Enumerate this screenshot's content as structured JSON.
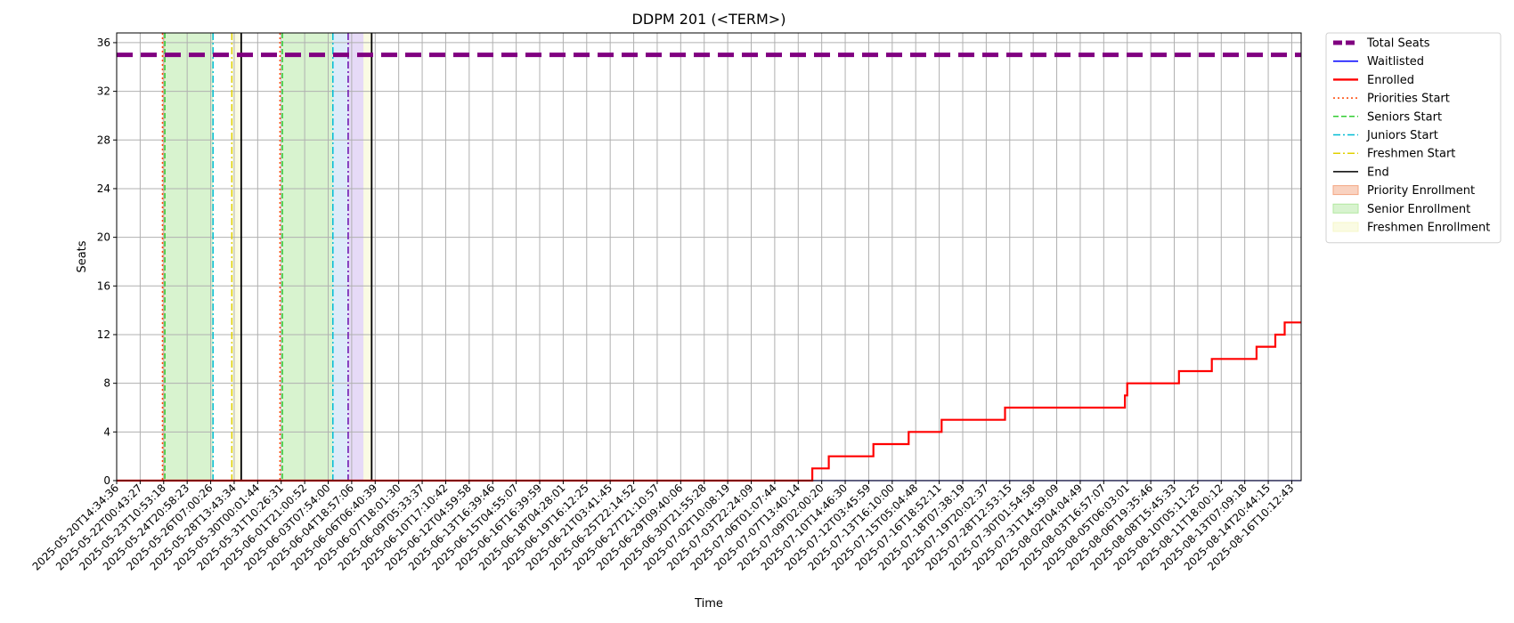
{
  "chart_data": {
    "type": "line",
    "title": "DDPM 201 (<TERM>)",
    "xlabel": "Time",
    "ylabel": "Seats",
    "ylim": [
      0,
      36.8
    ],
    "y_ticks": [
      0,
      4,
      8,
      12,
      16,
      20,
      24,
      28,
      32,
      36
    ],
    "grid": true,
    "legend_placement": "outside-top-right",
    "x_ticks": [
      "2025-05-20T14:34:36",
      "2025-05-22T00:43:27",
      "2025-05-23T10:53:18",
      "2025-05-24T20:58:23",
      "2025-05-26T07:00:26",
      "2025-05-28T13:43:34",
      "2025-05-30T00:01:44",
      "2025-05-31T10:26:31",
      "2025-06-01T21:00:52",
      "2025-06-03T07:54:00",
      "2025-06-04T18:57:06",
      "2025-06-06T06:40:39",
      "2025-06-07T18:01:30",
      "2025-06-09T05:33:37",
      "2025-06-10T17:10:42",
      "2025-06-12T04:59:58",
      "2025-06-13T16:39:46",
      "2025-06-15T04:55:07",
      "2025-06-16T16:39:59",
      "2025-06-18T04:28:01",
      "2025-06-19T16:12:25",
      "2025-06-21T03:41:45",
      "2025-06-25T22:14:52",
      "2025-06-27T21:10:57",
      "2025-06-29T09:40:06",
      "2025-06-30T21:55:28",
      "2025-07-02T10:08:19",
      "2025-07-03T22:24:09",
      "2025-07-06T01:07:44",
      "2025-07-07T13:40:14",
      "2025-07-09T02:00:20",
      "2025-07-10T14:46:30",
      "2025-07-12T03:45:59",
      "2025-07-13T16:10:00",
      "2025-07-15T05:04:48",
      "2025-07-16T18:52:11",
      "2025-07-18T07:38:19",
      "2025-07-19T20:02:37",
      "2025-07-28T12:53:15",
      "2025-07-30T01:54:58",
      "2025-07-31T14:59:09",
      "2025-08-02T04:04:49",
      "2025-08-03T16:57:07",
      "2025-08-05T06:03:01",
      "2025-08-06T19:35:46",
      "2025-08-08T15:45:33",
      "2025-08-10T05:11:25",
      "2025-08-11T18:00:12",
      "2025-08-13T07:09:18",
      "2025-08-14T20:44:15",
      "2025-08-16T10:12:43"
    ],
    "series": [
      {
        "name": "Total Seats",
        "color": "#800080",
        "style": "dashed-thick",
        "y_const": 35
      },
      {
        "name": "Waitlisted",
        "color": "#0000ff",
        "style": "solid-thin",
        "y_const": 0
      },
      {
        "name": "Enrolled",
        "color": "#ff0000",
        "style": "step",
        "points": [
          [
            0,
            0
          ],
          [
            29.6,
            0
          ],
          [
            29.6,
            1
          ],
          [
            30.3,
            1
          ],
          [
            30.3,
            2
          ],
          [
            32.2,
            2
          ],
          [
            32.2,
            3
          ],
          [
            33.7,
            3
          ],
          [
            33.7,
            4
          ],
          [
            35.1,
            4
          ],
          [
            35.1,
            5
          ],
          [
            37.8,
            5
          ],
          [
            37.8,
            6
          ],
          [
            42.9,
            6
          ],
          [
            42.9,
            7
          ],
          [
            43.0,
            7
          ],
          [
            43.0,
            8
          ],
          [
            45.2,
            8
          ],
          [
            45.2,
            9
          ],
          [
            46.6,
            9
          ],
          [
            46.6,
            10
          ],
          [
            48.5,
            10
          ],
          [
            48.5,
            11
          ],
          [
            49.3,
            11
          ],
          [
            49.3,
            12
          ],
          [
            49.7,
            12
          ],
          [
            49.7,
            13
          ],
          [
            50.4,
            13
          ]
        ]
      }
    ],
    "markers": [
      {
        "name": "Priorities Start",
        "color": "#ff4500",
        "style": "dotted",
        "x": [
          1.95,
          6.95
        ]
      },
      {
        "name": "Seniors Start",
        "color": "#32cd32",
        "style": "dashed",
        "x": [
          2.05,
          7.05
        ]
      },
      {
        "name": "Juniors Start",
        "color": "#00bcd4",
        "style": "dashdot",
        "x": [
          4.1,
          9.2
        ]
      },
      {
        "name": "Freshmen Start",
        "color": "#e0d000",
        "style": "dashdot",
        "x": [
          4.9
        ]
      },
      {
        "name": "Juniors Start (purple)",
        "color": "#6a0dad",
        "style": "dashdot",
        "x": [
          9.85
        ]
      },
      {
        "name": "End",
        "color": "#000000",
        "style": "solid",
        "x": [
          5.3,
          10.85
        ]
      }
    ],
    "spans": [
      {
        "name": "Priority Enrollment",
        "color": "#f4a582",
        "x": [
          1.95,
          2.05
        ]
      },
      {
        "name": "Senior Enrollment",
        "color": "#b2e8a0",
        "x": [
          2.05,
          4.1
        ]
      },
      {
        "name": "Senior Enrollment",
        "color": "#b2e8a0",
        "x": [
          7.05,
          9.2
        ]
      },
      {
        "name": "Juniors Span",
        "color": "#bcd7f6",
        "x": [
          9.2,
          9.85
        ]
      },
      {
        "name": "Purple Span",
        "color": "#cdb6f0",
        "x": [
          9.85,
          10.5
        ]
      },
      {
        "name": "Freshmen Enrollment",
        "color": "#f6f7c8",
        "x": [
          4.9,
          5.3
        ]
      },
      {
        "name": "Freshmen Enrollment",
        "color": "#f6f7c8",
        "x": [
          10.5,
          10.85
        ]
      }
    ],
    "legend": [
      {
        "label": "Total Seats",
        "color": "#800080",
        "kind": "line-thick-dash"
      },
      {
        "label": "Waitlisted",
        "color": "#0000ff",
        "kind": "line"
      },
      {
        "label": "Enrolled",
        "color": "#ff0000",
        "kind": "line-bold"
      },
      {
        "label": "Priorities Start",
        "color": "#ff4500",
        "kind": "dotted"
      },
      {
        "label": "Seniors Start",
        "color": "#32cd32",
        "kind": "dashed"
      },
      {
        "label": "Juniors Start",
        "color": "#00bcd4",
        "kind": "dashdot"
      },
      {
        "label": "Freshmen Start",
        "color": "#e0d000",
        "kind": "dashdot"
      },
      {
        "label": "End",
        "color": "#000000",
        "kind": "line"
      },
      {
        "label": "Priority Enrollment",
        "color": "#f4a582",
        "kind": "patch"
      },
      {
        "label": "Senior Enrollment",
        "color": "#b2e8a0",
        "kind": "patch"
      },
      {
        "label": "Freshmen Enrollment",
        "color": "#f6f7c8",
        "kind": "patch"
      }
    ]
  }
}
